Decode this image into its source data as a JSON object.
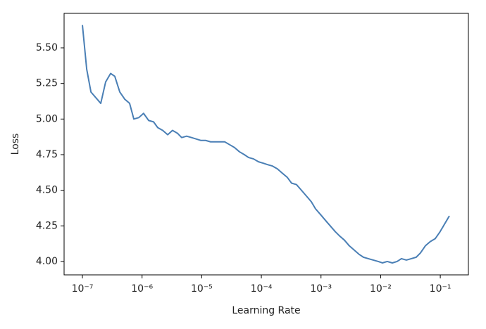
{
  "chart_data": {
    "type": "line",
    "xlabel": "Learning Rate",
    "ylabel": "Loss",
    "xscale": "log",
    "xlim": [
      4.93e-08,
      0.296
    ],
    "ylim": [
      3.906,
      5.742
    ],
    "xticks": [
      {
        "value": 1e-07,
        "label": "10⁻⁷"
      },
      {
        "value": 1e-06,
        "label": "10⁻⁶"
      },
      {
        "value": 1e-05,
        "label": "10⁻⁵"
      },
      {
        "value": 0.0001,
        "label": "10⁻⁴"
      },
      {
        "value": 0.001,
        "label": "10⁻³"
      },
      {
        "value": 0.01,
        "label": "10⁻²"
      },
      {
        "value": 0.1,
        "label": "10⁻¹"
      }
    ],
    "yticks": [
      {
        "value": 4.0,
        "label": "4.00"
      },
      4.25,
      {
        "value": 4.5,
        "label": "4.50"
      },
      4.75,
      {
        "value": 5.0,
        "label": "5.00"
      },
      5.25,
      {
        "value": 5.5,
        "label": "5.50"
      }
    ],
    "grid": false,
    "color": "#4a7fb5",
    "x": [
      1e-07,
      1.18e-07,
      1.39e-07,
      2.03e-07,
      2.45e-07,
      2.97e-07,
      3.49e-07,
      4.23e-07,
      5.11e-07,
      6.18e-07,
      7.28e-07,
      8.81e-07,
      1.06e-06,
      1.29e-06,
      1.56e-06,
      1.83e-06,
      2.22e-06,
      2.69e-06,
      3.24e-06,
      3.93e-06,
      4.62e-06,
      5.59e-06,
      6.76e-06,
      9.62e-06,
      1.16e-05,
      1.41e-05,
      2e-05,
      2.43e-05,
      2.94e-05,
      3.55e-05,
      4.3e-05,
      5.19e-05,
      6.11e-05,
      7.4e-05,
      8.95e-05,
      0.000108,
      0.000127,
      0.000154,
      0.000186,
      0.000225,
      0.000273,
      0.000321,
      0.000388,
      0.00047,
      0.000568,
      0.000687,
      0.000809,
      0.000979,
      0.00118,
      0.00143,
      0.00173,
      0.00204,
      0.00247,
      0.00298,
      0.00361,
      0.00436,
      0.00514,
      0.00621,
      0.00752,
      0.0091,
      0.0107,
      0.0129,
      0.0157,
      0.0189,
      0.0223,
      0.027,
      0.0327,
      0.0395,
      0.0465,
      0.0562,
      0.068,
      0.0822,
      0.0995,
      0.117,
      0.142
    ],
    "values": [
      5.66,
      5.35,
      5.19,
      5.11,
      5.26,
      5.32,
      5.3,
      5.19,
      5.14,
      5.11,
      5.0,
      5.01,
      5.04,
      4.99,
      4.98,
      4.94,
      4.92,
      4.89,
      4.92,
      4.9,
      4.87,
      4.88,
      4.87,
      4.85,
      4.85,
      4.84,
      4.84,
      4.84,
      4.82,
      4.8,
      4.77,
      4.75,
      4.73,
      4.72,
      4.7,
      4.69,
      4.68,
      4.67,
      4.65,
      4.62,
      4.59,
      4.55,
      4.54,
      4.5,
      4.46,
      4.42,
      4.37,
      4.33,
      4.29,
      4.25,
      4.21,
      4.18,
      4.15,
      4.11,
      4.08,
      4.05,
      4.03,
      4.02,
      4.01,
      4.0,
      3.99,
      4.0,
      3.99,
      4.0,
      4.02,
      4.01,
      4.02,
      4.03,
      4.06,
      4.11,
      4.14,
      4.16,
      4.21,
      4.26,
      4.32
    ]
  }
}
